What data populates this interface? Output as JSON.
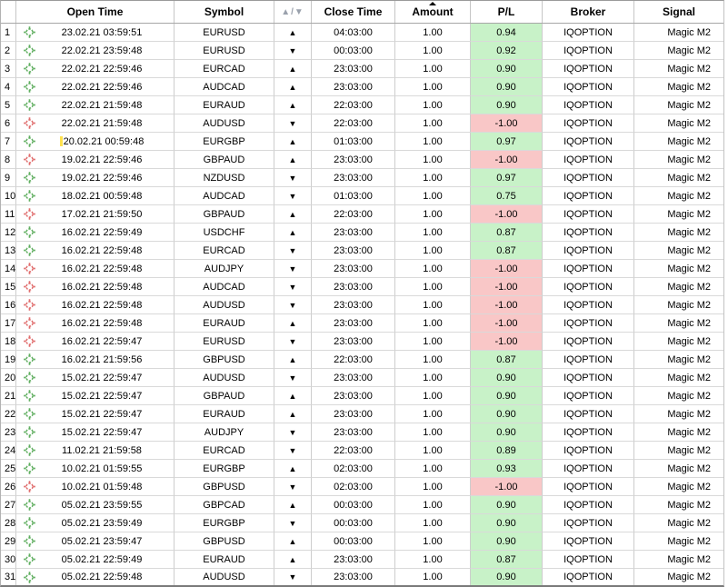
{
  "header": {
    "columns": [
      "",
      "Open Time",
      "Symbol",
      "▲/▼",
      "Close Time",
      "Amount",
      "P/L",
      "Broker",
      "Signal"
    ],
    "sorted_column": "Amount",
    "sort_direction": "ascending"
  },
  "glyphs": {
    "up": "▲",
    "down": "▼"
  },
  "colors": {
    "win_bg": "#c8f2c8",
    "loss_bg": "#f9c7c7",
    "win_icon": "#5fae5f",
    "loss_icon": "#e06c6c"
  },
  "trades": [
    {
      "n": "1",
      "result": "win",
      "open_time": "23.02.21 03:59:51",
      "symbol": "EURUSD",
      "direction": "up",
      "close_time": "04:03:00",
      "amount": "1.00",
      "pl": "0.94",
      "broker": "IQOPTION",
      "signal": "Magic M2"
    },
    {
      "n": "2",
      "result": "win",
      "open_time": "22.02.21 23:59:48",
      "symbol": "EURUSD",
      "direction": "down",
      "close_time": "00:03:00",
      "amount": "1.00",
      "pl": "0.92",
      "broker": "IQOPTION",
      "signal": "Magic M2"
    },
    {
      "n": "3",
      "result": "win",
      "open_time": "22.02.21 22:59:46",
      "symbol": "EURCAD",
      "direction": "up",
      "close_time": "23:03:00",
      "amount": "1.00",
      "pl": "0.90",
      "broker": "IQOPTION",
      "signal": "Magic M2"
    },
    {
      "n": "4",
      "result": "win",
      "open_time": "22.02.21 22:59:46",
      "symbol": "AUDCAD",
      "direction": "up",
      "close_time": "23:03:00",
      "amount": "1.00",
      "pl": "0.90",
      "broker": "IQOPTION",
      "signal": "Magic M2"
    },
    {
      "n": "5",
      "result": "win",
      "open_time": "22.02.21 21:59:48",
      "symbol": "EURAUD",
      "direction": "up",
      "close_time": "22:03:00",
      "amount": "1.00",
      "pl": "0.90",
      "broker": "IQOPTION",
      "signal": "Magic M2"
    },
    {
      "n": "6",
      "result": "loss",
      "open_time": "22.02.21 21:59:48",
      "symbol": "AUDUSD",
      "direction": "down",
      "close_time": "22:03:00",
      "amount": "1.00",
      "pl": "-1.00",
      "broker": "IQOPTION",
      "signal": "Magic M2"
    },
    {
      "n": "7",
      "result": "win",
      "open_time": "20.02.21 00:59:48",
      "symbol": "EURGBP",
      "direction": "up",
      "close_time": "01:03:00",
      "amount": "1.00",
      "pl": "0.97",
      "broker": "IQOPTION",
      "signal": "Magic M2",
      "marker": true
    },
    {
      "n": "8",
      "result": "loss",
      "open_time": "19.02.21 22:59:46",
      "symbol": "GBPAUD",
      "direction": "up",
      "close_time": "23:03:00",
      "amount": "1.00",
      "pl": "-1.00",
      "broker": "IQOPTION",
      "signal": "Magic M2"
    },
    {
      "n": "9",
      "result": "win",
      "open_time": "19.02.21 22:59:46",
      "symbol": "NZDUSD",
      "direction": "down",
      "close_time": "23:03:00",
      "amount": "1.00",
      "pl": "0.97",
      "broker": "IQOPTION",
      "signal": "Magic M2"
    },
    {
      "n": "10",
      "result": "win",
      "open_time": "18.02.21 00:59:48",
      "symbol": "AUDCAD",
      "direction": "down",
      "close_time": "01:03:00",
      "amount": "1.00",
      "pl": "0.75",
      "broker": "IQOPTION",
      "signal": "Magic M2"
    },
    {
      "n": "11",
      "result": "loss",
      "open_time": "17.02.21 21:59:50",
      "symbol": "GBPAUD",
      "direction": "up",
      "close_time": "22:03:00",
      "amount": "1.00",
      "pl": "-1.00",
      "broker": "IQOPTION",
      "signal": "Magic M2"
    },
    {
      "n": "12",
      "result": "win",
      "open_time": "16.02.21 22:59:49",
      "symbol": "USDCHF",
      "direction": "up",
      "close_time": "23:03:00",
      "amount": "1.00",
      "pl": "0.87",
      "broker": "IQOPTION",
      "signal": "Magic M2"
    },
    {
      "n": "13",
      "result": "win",
      "open_time": "16.02.21 22:59:48",
      "symbol": "EURCAD",
      "direction": "down",
      "close_time": "23:03:00",
      "amount": "1.00",
      "pl": "0.87",
      "broker": "IQOPTION",
      "signal": "Magic M2"
    },
    {
      "n": "14",
      "result": "loss",
      "open_time": "16.02.21 22:59:48",
      "symbol": "AUDJPY",
      "direction": "down",
      "close_time": "23:03:00",
      "amount": "1.00",
      "pl": "-1.00",
      "broker": "IQOPTION",
      "signal": "Magic M2"
    },
    {
      "n": "15",
      "result": "loss",
      "open_time": "16.02.21 22:59:48",
      "symbol": "AUDCAD",
      "direction": "down",
      "close_time": "23:03:00",
      "amount": "1.00",
      "pl": "-1.00",
      "broker": "IQOPTION",
      "signal": "Magic M2"
    },
    {
      "n": "16",
      "result": "loss",
      "open_time": "16.02.21 22:59:48",
      "symbol": "AUDUSD",
      "direction": "down",
      "close_time": "23:03:00",
      "amount": "1.00",
      "pl": "-1.00",
      "broker": "IQOPTION",
      "signal": "Magic M2"
    },
    {
      "n": "17",
      "result": "loss",
      "open_time": "16.02.21 22:59:48",
      "symbol": "EURAUD",
      "direction": "up",
      "close_time": "23:03:00",
      "amount": "1.00",
      "pl": "-1.00",
      "broker": "IQOPTION",
      "signal": "Magic M2"
    },
    {
      "n": "18",
      "result": "loss",
      "open_time": "16.02.21 22:59:47",
      "symbol": "EURUSD",
      "direction": "down",
      "close_time": "23:03:00",
      "amount": "1.00",
      "pl": "-1.00",
      "broker": "IQOPTION",
      "signal": "Magic M2"
    },
    {
      "n": "19",
      "result": "win",
      "open_time": "16.02.21 21:59:56",
      "symbol": "GBPUSD",
      "direction": "up",
      "close_time": "22:03:00",
      "amount": "1.00",
      "pl": "0.87",
      "broker": "IQOPTION",
      "signal": "Magic M2"
    },
    {
      "n": "20",
      "result": "win",
      "open_time": "15.02.21 22:59:47",
      "symbol": "AUDUSD",
      "direction": "down",
      "close_time": "23:03:00",
      "amount": "1.00",
      "pl": "0.90",
      "broker": "IQOPTION",
      "signal": "Magic M2"
    },
    {
      "n": "21",
      "result": "win",
      "open_time": "15.02.21 22:59:47",
      "symbol": "GBPAUD",
      "direction": "up",
      "close_time": "23:03:00",
      "amount": "1.00",
      "pl": "0.90",
      "broker": "IQOPTION",
      "signal": "Magic M2"
    },
    {
      "n": "22",
      "result": "win",
      "open_time": "15.02.21 22:59:47",
      "symbol": "EURAUD",
      "direction": "up",
      "close_time": "23:03:00",
      "amount": "1.00",
      "pl": "0.90",
      "broker": "IQOPTION",
      "signal": "Magic M2"
    },
    {
      "n": "23",
      "result": "win",
      "open_time": "15.02.21 22:59:47",
      "symbol": "AUDJPY",
      "direction": "down",
      "close_time": "23:03:00",
      "amount": "1.00",
      "pl": "0.90",
      "broker": "IQOPTION",
      "signal": "Magic M2"
    },
    {
      "n": "24",
      "result": "win",
      "open_time": "11.02.21 21:59:58",
      "symbol": "EURCAD",
      "direction": "down",
      "close_time": "22:03:00",
      "amount": "1.00",
      "pl": "0.89",
      "broker": "IQOPTION",
      "signal": "Magic M2"
    },
    {
      "n": "25",
      "result": "win",
      "open_time": "10.02.21 01:59:55",
      "symbol": "EURGBP",
      "direction": "up",
      "close_time": "02:03:00",
      "amount": "1.00",
      "pl": "0.93",
      "broker": "IQOPTION",
      "signal": "Magic M2"
    },
    {
      "n": "26",
      "result": "loss",
      "open_time": "10.02.21 01:59:48",
      "symbol": "GBPUSD",
      "direction": "down",
      "close_time": "02:03:00",
      "amount": "1.00",
      "pl": "-1.00",
      "broker": "IQOPTION",
      "signal": "Magic M2"
    },
    {
      "n": "27",
      "result": "win",
      "open_time": "05.02.21 23:59:55",
      "symbol": "GBPCAD",
      "direction": "up",
      "close_time": "00:03:00",
      "amount": "1.00",
      "pl": "0.90",
      "broker": "IQOPTION",
      "signal": "Magic M2"
    },
    {
      "n": "28",
      "result": "win",
      "open_time": "05.02.21 23:59:49",
      "symbol": "EURGBP",
      "direction": "down",
      "close_time": "00:03:00",
      "amount": "1.00",
      "pl": "0.90",
      "broker": "IQOPTION",
      "signal": "Magic M2"
    },
    {
      "n": "29",
      "result": "win",
      "open_time": "05.02.21 23:59:47",
      "symbol": "GBPUSD",
      "direction": "up",
      "close_time": "00:03:00",
      "amount": "1.00",
      "pl": "0.90",
      "broker": "IQOPTION",
      "signal": "Magic M2"
    },
    {
      "n": "30",
      "result": "win",
      "open_time": "05.02.21 22:59:49",
      "symbol": "EURAUD",
      "direction": "up",
      "close_time": "23:03:00",
      "amount": "1.00",
      "pl": "0.87",
      "broker": "IQOPTION",
      "signal": "Magic M2"
    },
    {
      "n": "31",
      "result": "win",
      "open_time": "05.02.21 22:59:48",
      "symbol": "AUDUSD",
      "direction": "down",
      "close_time": "23:03:00",
      "amount": "1.00",
      "pl": "0.90",
      "broker": "IQOPTION",
      "signal": "Magic M2"
    }
  ]
}
